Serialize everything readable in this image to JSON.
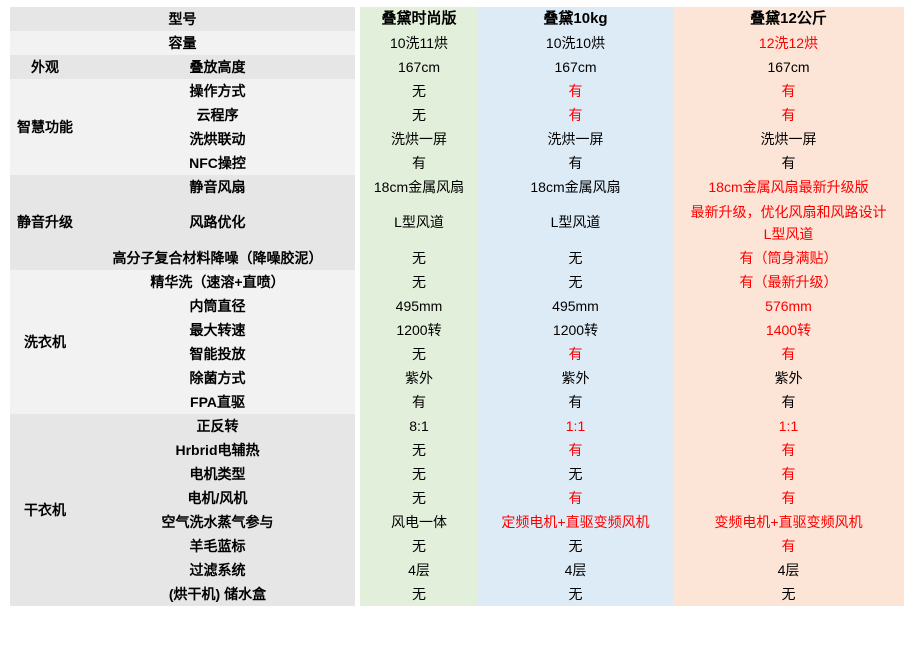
{
  "colors": {
    "red_highlight": "#FF0000",
    "band_dark": "#E7E6E6",
    "band_light": "#F2F2F2",
    "text": "#000000"
  },
  "columns": [
    {
      "name": "col-green",
      "fill": "#E2EFDA"
    },
    {
      "name": "col-blue",
      "fill": "#DDEBF7"
    },
    {
      "name": "col-peach",
      "fill": "#FCE4D6"
    }
  ],
  "categories": [
    {
      "label": "外观"
    },
    {
      "label": "智慧功能"
    },
    {
      "label": "静音升级"
    },
    {
      "label": "洗衣机"
    },
    {
      "label": "干衣机"
    }
  ],
  "rows": [
    {
      "label": "型号",
      "cells": [
        {
          "text": "叠黛时尚版",
          "red": false
        },
        {
          "text": "叠黛10kg",
          "red": false
        },
        {
          "text": "叠黛12公斤",
          "red": false
        }
      ]
    },
    {
      "label": "容量",
      "cells": [
        {
          "text": "10洗11烘",
          "red": false
        },
        {
          "text": "10洗10烘",
          "red": false
        },
        {
          "text": "12洗12烘",
          "red": true
        }
      ]
    },
    {
      "label": "叠放高度",
      "cells": [
        {
          "text": "167cm",
          "red": false
        },
        {
          "text": "167cm",
          "red": false
        },
        {
          "text": "167cm",
          "red": false
        }
      ]
    },
    {
      "label": "操作方式",
      "cells": [
        {
          "text": "无",
          "red": false
        },
        {
          "text": "有",
          "red": true
        },
        {
          "text": "有",
          "red": true
        }
      ]
    },
    {
      "label": "云程序",
      "cells": [
        {
          "text": "无",
          "red": false
        },
        {
          "text": "有",
          "red": true
        },
        {
          "text": "有",
          "red": true
        }
      ]
    },
    {
      "label": "洗烘联动",
      "cells": [
        {
          "text": "洗烘一屏",
          "red": false
        },
        {
          "text": "洗烘一屏",
          "red": false
        },
        {
          "text": "洗烘一屏",
          "red": false
        }
      ]
    },
    {
      "label": "NFC操控",
      "cells": [
        {
          "text": "有",
          "red": false
        },
        {
          "text": "有",
          "red": false
        },
        {
          "text": "有",
          "red": false
        }
      ]
    },
    {
      "label": "静音风扇",
      "cells": [
        {
          "text": "18cm金属风扇",
          "red": false
        },
        {
          "text": "18cm金属风扇",
          "red": false
        },
        {
          "text": "18cm金属风扇最新升级版",
          "red": true
        }
      ]
    },
    {
      "label": "风路优化",
      "cells": [
        {
          "text": "L型风道",
          "red": false
        },
        {
          "text": "L型风道",
          "red": false
        },
        {
          "text": "最新升级，优化风扇和风路设计\nL型风道",
          "red": true
        }
      ]
    },
    {
      "label": "高分子复合材料降噪（降噪胶泥）",
      "cells": [
        {
          "text": "无",
          "red": false
        },
        {
          "text": "无",
          "red": false
        },
        {
          "text": "有（筒身满贴）",
          "red": true
        }
      ]
    },
    {
      "label": "精华洗（速溶+直喷）",
      "cells": [
        {
          "text": "无",
          "red": false
        },
        {
          "text": "无",
          "red": false
        },
        {
          "text": "有（最新升级）",
          "red": true
        }
      ]
    },
    {
      "label": "内筒直径",
      "cells": [
        {
          "text": "495mm",
          "red": false
        },
        {
          "text": "495mm",
          "red": false
        },
        {
          "text": "576mm",
          "red": true
        }
      ]
    },
    {
      "label": "最大转速",
      "cells": [
        {
          "text": "1200转",
          "red": false
        },
        {
          "text": "1200转",
          "red": false
        },
        {
          "text": "1400转",
          "red": true
        }
      ]
    },
    {
      "label": "智能投放",
      "cells": [
        {
          "text": "无",
          "red": false
        },
        {
          "text": "有",
          "red": true
        },
        {
          "text": "有",
          "red": true
        }
      ]
    },
    {
      "label": "除菌方式",
      "cells": [
        {
          "text": "紫外",
          "red": false
        },
        {
          "text": "紫外",
          "red": false
        },
        {
          "text": "紫外",
          "red": false
        }
      ]
    },
    {
      "label": "FPA直驱",
      "cells": [
        {
          "text": "有",
          "red": false
        },
        {
          "text": "有",
          "red": false
        },
        {
          "text": "有",
          "red": false
        }
      ]
    },
    {
      "label": "正反转",
      "cells": [
        {
          "text": "8:1",
          "red": false
        },
        {
          "text": "1:1",
          "red": true
        },
        {
          "text": "1:1",
          "red": true
        }
      ]
    },
    {
      "label": "Hrbrid电辅热",
      "cells": [
        {
          "text": "无",
          "red": false
        },
        {
          "text": "有",
          "red": true
        },
        {
          "text": "有",
          "red": true
        }
      ]
    },
    {
      "label": "电机类型",
      "cells": [
        {
          "text": "无",
          "red": false
        },
        {
          "text": "无",
          "red": false
        },
        {
          "text": "有",
          "red": true
        }
      ]
    },
    {
      "label": "电机/风机",
      "cells": [
        {
          "text": "无",
          "red": false
        },
        {
          "text": "有",
          "red": true
        },
        {
          "text": "有",
          "red": true
        }
      ]
    },
    {
      "label": "空气洗水蒸气参与",
      "cells": [
        {
          "text": "风电一体",
          "red": false
        },
        {
          "text": "定频电机+直驱变频风机",
          "red": true
        },
        {
          "text": "变频电机+直驱变频风机",
          "red": true
        }
      ]
    },
    {
      "label": "羊毛蓝标",
      "cells": [
        {
          "text": "无",
          "red": false
        },
        {
          "text": "无",
          "red": false
        },
        {
          "text": "有",
          "red": true
        }
      ]
    },
    {
      "label": "过滤系统",
      "cells": [
        {
          "text": "4层",
          "red": false
        },
        {
          "text": "4层",
          "red": false
        },
        {
          "text": "4层",
          "red": false
        }
      ]
    },
    {
      "label": "(烘干机) 储水盒",
      "cells": [
        {
          "text": "无",
          "red": false
        },
        {
          "text": "无",
          "red": false
        },
        {
          "text": "无",
          "red": false
        }
      ]
    }
  ]
}
